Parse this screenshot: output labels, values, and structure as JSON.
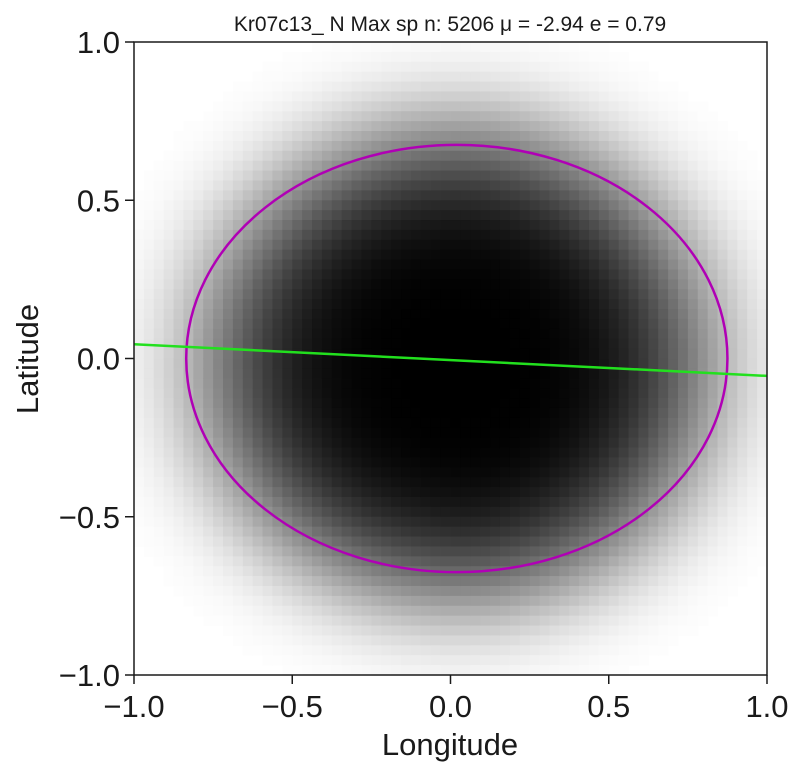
{
  "chart_data": {
    "type": "heatmap",
    "title": "Kr07c13_ N Max  sp n: 5206  μ =  -2.94  e =   0.79",
    "xlabel": "Longitude",
    "ylabel": "Latitude",
    "xlim": [
      -1.0,
      1.0
    ],
    "ylim": [
      -1.0,
      1.0
    ],
    "xticks": [
      -1.0,
      -0.5,
      0.0,
      0.5,
      1.0
    ],
    "yticks": [
      -1.0,
      -0.5,
      0.0,
      0.5,
      1.0
    ],
    "xtick_labels": [
      "−1.0",
      "−0.5",
      "0.0",
      "0.5",
      "1.0"
    ],
    "ytick_labels": [
      "−1.0",
      "−0.5",
      "0.0",
      "0.5",
      "1.0"
    ],
    "grid": false,
    "colormap": "Greys",
    "density": {
      "center": [
        0.02,
        -0.02
      ],
      "sigma_x": 0.62,
      "sigma_y": 0.58,
      "cells": 64
    },
    "ellipse": {
      "center": [
        0.02,
        0.0
      ],
      "semi_x": 0.855,
      "semi_y": 0.675,
      "color": "#b000b5"
    },
    "fit_line": {
      "x": [
        -1.0,
        1.0
      ],
      "y": [
        0.045,
        -0.055
      ],
      "color": "#22e01e"
    }
  }
}
